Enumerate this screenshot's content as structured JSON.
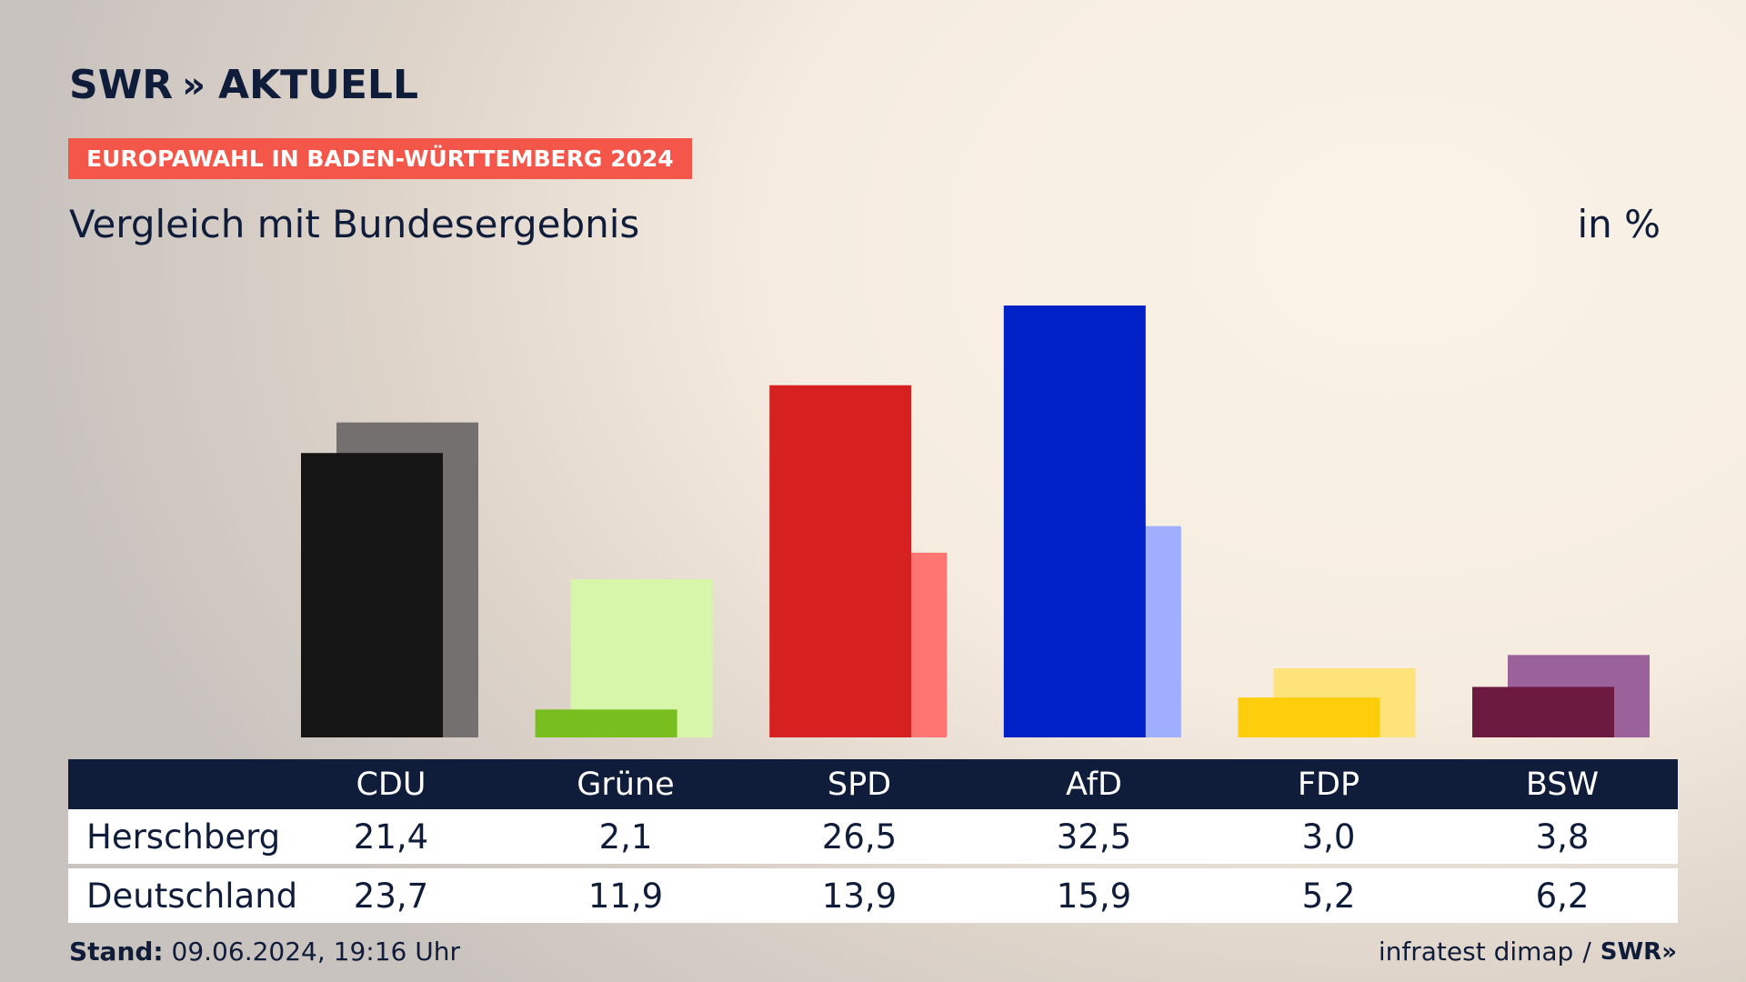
{
  "header": {
    "logo_text": "SWR",
    "logo_chevrons": "»",
    "logo_suffix": "AKTUELL",
    "badge": "EUROPAWAHL IN BADEN-WÜRTTEMBERG 2024",
    "subtitle": "Vergleich mit Bundesergebnis",
    "unit": "in %"
  },
  "chart_data": {
    "type": "bar",
    "categories": [
      "CDU",
      "Grüne",
      "SPD",
      "AfD",
      "FDP",
      "BSW"
    ],
    "series": [
      {
        "name": "Herschberg",
        "values": [
          21.4,
          2.1,
          26.5,
          32.5,
          3.0,
          3.8
        ],
        "colors": [
          "#151515",
          "#78be1e",
          "#d72020",
          "#0020c8",
          "#fecd0c",
          "#6d1a40"
        ]
      },
      {
        "name": "Deutschland",
        "values": [
          23.7,
          11.9,
          13.9,
          15.9,
          5.2,
          6.2
        ],
        "colors": [
          "#747070",
          "#d7f6aa",
          "#fe7572",
          "#a0aeff",
          "#fee37a",
          "#9b619a"
        ]
      }
    ],
    "ylim": [
      0,
      32.5
    ]
  },
  "table": {
    "headers": [
      "CDU",
      "Grüne",
      "SPD",
      "AfD",
      "FDP",
      "BSW"
    ],
    "rows": [
      {
        "label": "Herschberg",
        "values": [
          "21,4",
          "2,1",
          "26,5",
          "32,5",
          "3,0",
          "3,8"
        ]
      },
      {
        "label": "Deutschland",
        "values": [
          "23,7",
          "11,9",
          "13,9",
          "15,9",
          "5,2",
          "6,2"
        ]
      }
    ]
  },
  "footer": {
    "stand_label": "Stand:",
    "stand_value": "09.06.2024, 19:16 Uhr",
    "source": "infratest dimap",
    "separator": "/",
    "source_logo": "SWR»"
  }
}
